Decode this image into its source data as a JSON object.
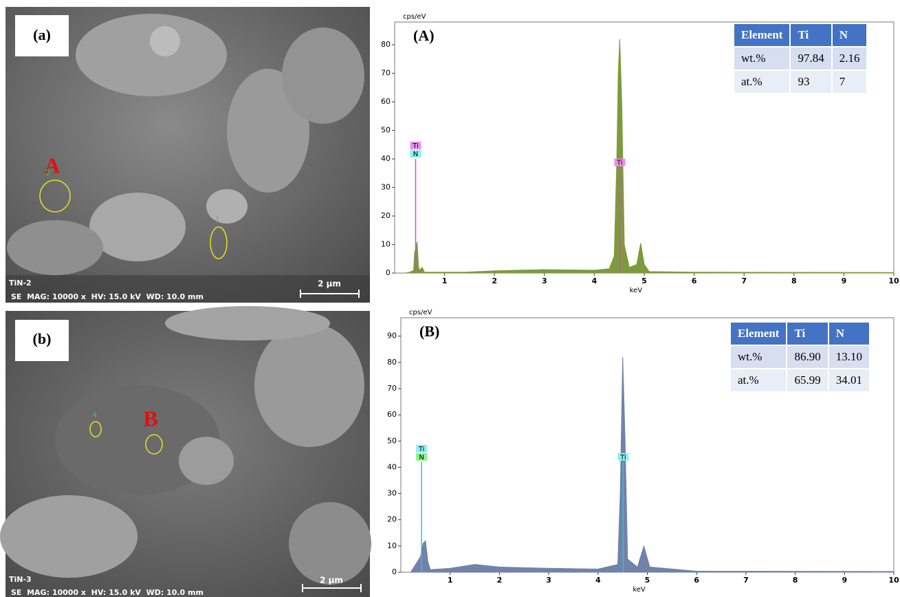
{
  "panels": [
    {
      "label": "(a)",
      "sample": "TiN-2",
      "info": "SE  MAG: 10000 x  HV: 15.0 kV  WD: 10.0 mm",
      "scale": "2 μm",
      "region": "A",
      "spots": [
        "2",
        "1"
      ]
    },
    {
      "label": "(b)",
      "sample": "TiN-3",
      "info": "SE  MAG: 10000 x  HV: 15.0 kV  WD: 10.0 mm",
      "scale": "2 μm",
      "region": "B",
      "spots": [
        "4"
      ]
    }
  ],
  "chart_data": [
    {
      "type": "area",
      "panel_label": "(A)",
      "y_label": "cps/eV",
      "x_label": "keV",
      "color": "#7d9a3c",
      "x": [
        0.2,
        0.3,
        0.38,
        0.4,
        0.45,
        0.48,
        0.5,
        0.55,
        0.6,
        1.4,
        2,
        3,
        4,
        4.3,
        4.4,
        4.45,
        4.48,
        4.51,
        4.55,
        4.6,
        4.7,
        4.85,
        4.93,
        5.0,
        5.1,
        6,
        10
      ],
      "values": [
        0,
        0.3,
        1,
        7,
        11,
        2,
        1,
        2,
        0.3,
        0.3,
        0.8,
        1.2,
        1,
        1.5,
        6,
        40,
        70,
        82,
        60,
        10,
        2,
        3,
        10.5,
        3,
        0.5,
        0.3,
        0.2
      ],
      "xlim": [
        0,
        10
      ],
      "ylim": [
        0,
        88
      ],
      "xticks": [
        1,
        2,
        3,
        4,
        5,
        6,
        7,
        8,
        9,
        10
      ],
      "yticks": [
        0,
        10,
        20,
        30,
        40,
        50,
        60,
        70,
        80
      ],
      "markers": [
        {
          "x": 0.42,
          "y": 40,
          "labels": [
            "Ti",
            "N"
          ],
          "colors": [
            "#f08cf0",
            "#8cf0f0"
          ],
          "line_color": "#e040e0"
        },
        {
          "x": 4.51,
          "y": 37,
          "labels": [
            "Ti"
          ],
          "colors": [
            "#f08cf0"
          ],
          "line_color": "#e040e0"
        }
      ],
      "table": {
        "header": [
          "Element",
          "Ti",
          "N"
        ],
        "rows": [
          [
            "wt.%",
            "97.84",
            "2.16"
          ],
          [
            "at.%",
            "93",
            "7"
          ]
        ]
      }
    },
    {
      "type": "area",
      "panel_label": "(B)",
      "y_label": "cps/eV",
      "x_label": "keV",
      "color": "#7282aa",
      "x": [
        0.2,
        0.3,
        0.4,
        0.45,
        0.5,
        0.55,
        0.6,
        1,
        1.5,
        2,
        3,
        4,
        4.4,
        4.45,
        4.5,
        4.55,
        4.6,
        4.8,
        4.93,
        5.05,
        6,
        10
      ],
      "values": [
        0,
        3,
        6,
        11,
        12,
        4,
        1,
        1.5,
        3,
        2,
        1.5,
        1.2,
        3,
        30,
        82,
        50,
        5,
        2,
        10,
        2,
        0.4,
        0.3
      ],
      "xlim": [
        0,
        10
      ],
      "ylim": [
        0,
        97
      ],
      "xticks": [
        1,
        2,
        3,
        4,
        5,
        6,
        7,
        8,
        9,
        10
      ],
      "yticks": [
        0,
        10,
        20,
        30,
        40,
        50,
        60,
        70,
        80,
        90
      ],
      "markers": [
        {
          "x": 0.42,
          "y": 42,
          "labels": [
            "Ti",
            "N"
          ],
          "colors": [
            "#8cf0f0",
            "#8cf08c"
          ],
          "line_color": "#30c0d0"
        },
        {
          "x": 4.51,
          "y": 42,
          "labels": [
            "Ti"
          ],
          "colors": [
            "#8cf0f0"
          ],
          "line_color": "#30c0d0"
        }
      ],
      "table": {
        "header": [
          "Element",
          "Ti",
          "N"
        ],
        "rows": [
          [
            "wt.%",
            "86.90",
            "13.10"
          ],
          [
            "at.%",
            "65.99",
            "34.01"
          ]
        ]
      }
    }
  ]
}
